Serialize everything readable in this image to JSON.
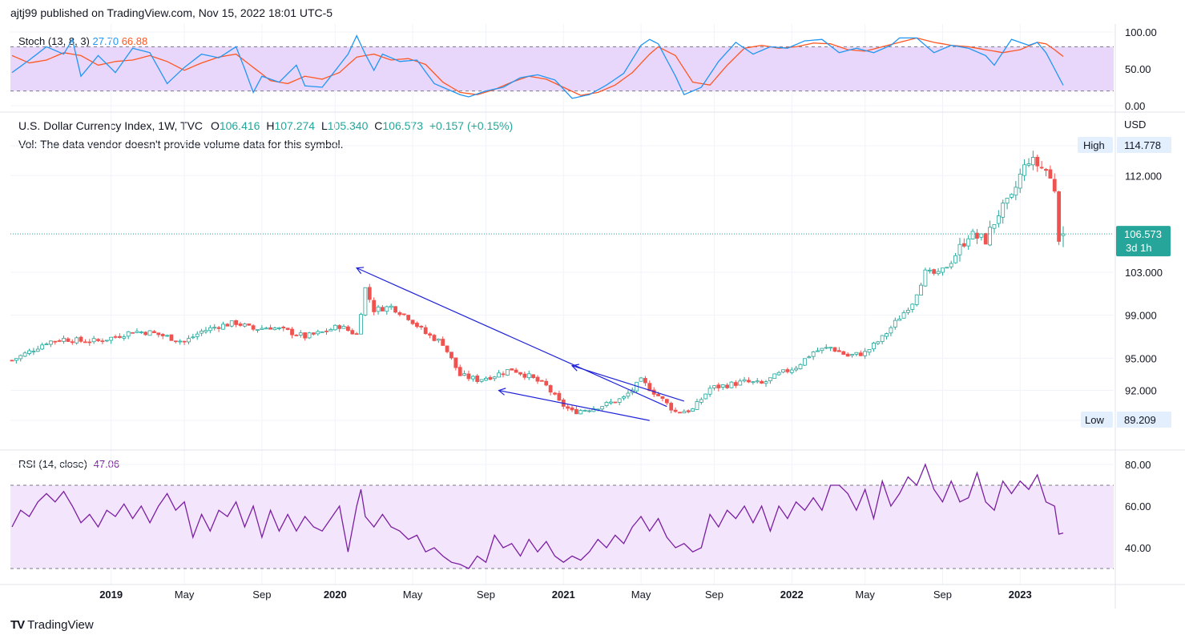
{
  "header": {
    "publisher": "ajtj99 published on TradingView.com, Nov 15, 2022 18:01 UTC-5"
  },
  "footer": {
    "brand": "TradingView"
  },
  "colors": {
    "up": "#26a69a",
    "down": "#ef5350",
    "stoch_k": "#2196f3",
    "stoch_d": "#ff5722",
    "rsi": "#7b1fa2",
    "band_stoch": "#e9d7fb",
    "band_rsi": "#f3e5fc",
    "trendline": "#1e22d8"
  },
  "chart_data": [
    {
      "type": "candlestick",
      "id": "price",
      "title": "U.S. Dollar Currency Index, 1W, TVC",
      "ohlc_label": {
        "o_label": "O",
        "o": "106.416",
        "h_label": "H",
        "h": "107.274",
        "l_label": "L",
        "l": "105.340",
        "c_label": "C",
        "c": "106.573",
        "chg": "+0.157 (+0.15%)"
      },
      "volume_note": "Vol: The data vendor doesn't provide volume data for this symbol.",
      "currency": "USD",
      "y_ticks": [
        89.209,
        92.0,
        95.0,
        99.0,
        103.0,
        112.0,
        114.778
      ],
      "y_tick_labels": [
        "92.000",
        "95.000",
        "99.000",
        "103.000",
        "112.000"
      ],
      "high_tag": {
        "label": "High",
        "value": "114.778"
      },
      "low_tag": {
        "label": "Low",
        "value": "89.209"
      },
      "last_tag": {
        "value": "106.573",
        "countdown": "3d 1h"
      },
      "x_labels": [
        "2019",
        "May",
        "Sep",
        "2020",
        "May",
        "Sep",
        "2021",
        "May",
        "Sep",
        "2022",
        "May",
        "Sep",
        "2023"
      ],
      "anchors": [
        [
          0,
          94.8
        ],
        [
          4,
          95.6
        ],
        [
          8,
          96.5
        ],
        [
          12,
          96.8
        ],
        [
          16,
          96.6
        ],
        [
          20,
          96.6
        ],
        [
          24,
          97.0
        ],
        [
          28,
          97.5
        ],
        [
          32,
          97.4
        ],
        [
          36,
          97.0
        ],
        [
          40,
          96.5
        ],
        [
          44,
          97.5
        ],
        [
          48,
          98.0
        ],
        [
          52,
          98.3
        ],
        [
          56,
          97.7
        ],
        [
          60,
          97.9
        ],
        [
          64,
          97.5
        ],
        [
          68,
          97.0
        ],
        [
          72,
          97.4
        ],
        [
          76,
          98.0
        ],
        [
          80,
          97.2
        ],
        [
          82,
          101.5
        ],
        [
          84,
          99.5
        ],
        [
          88,
          99.8
        ],
        [
          92,
          98.8
        ],
        [
          96,
          97.3
        ],
        [
          100,
          96.4
        ],
        [
          104,
          93.4
        ],
        [
          108,
          93.0
        ],
        [
          112,
          93.4
        ],
        [
          116,
          94.0
        ],
        [
          120,
          93.3
        ],
        [
          124,
          92.4
        ],
        [
          127,
          90.9
        ],
        [
          130,
          90.0
        ],
        [
          134,
          90.3
        ],
        [
          138,
          90.7
        ],
        [
          142,
          91.3
        ],
        [
          146,
          92.9
        ],
        [
          150,
          91.5
        ],
        [
          154,
          90.0
        ],
        [
          158,
          90.2
        ],
        [
          162,
          92.2
        ],
        [
          166,
          92.5
        ],
        [
          170,
          92.8
        ],
        [
          174,
          92.6
        ],
        [
          178,
          93.5
        ],
        [
          182,
          94.2
        ],
        [
          186,
          95.6
        ],
        [
          190,
          96.0
        ],
        [
          194,
          95.2
        ],
        [
          198,
          95.5
        ],
        [
          202,
          96.9
        ],
        [
          206,
          98.8
        ],
        [
          209,
          100.2
        ],
        [
          212,
          103.0
        ],
        [
          215,
          102.8
        ],
        [
          218,
          104.0
        ],
        [
          222,
          106.5
        ],
        [
          226,
          106.0
        ],
        [
          229,
          108.5
        ],
        [
          232,
          109.8
        ],
        [
          234,
          112.0
        ],
        [
          236,
          113.5
        ],
        [
          238,
          113.0
        ],
        [
          240,
          112.5
        ],
        [
          242,
          110.8
        ],
        [
          243,
          106.4
        ],
        [
          244,
          106.57
        ]
      ],
      "trendlines": [
        {
          "from": [
            80,
            103.4
          ],
          "to": [
            152,
            90.5
          ],
          "arrow": "start"
        },
        {
          "from": [
            113,
            92.0
          ],
          "to": [
            148,
            89.2
          ],
          "arrow": "start"
        },
        {
          "from": [
            130,
            94.3
          ],
          "to": [
            156,
            91.0
          ],
          "arrow": "start"
        }
      ]
    },
    {
      "type": "line",
      "id": "stoch",
      "title": "Stoch (13, 8, 3)",
      "k_value": "27.70",
      "d_value": "66.88",
      "ylim": [
        0,
        100
      ],
      "y_tick_labels": [
        "100.00",
        "50.00",
        "0.00"
      ],
      "band": [
        20,
        80
      ],
      "k_anchors": [
        [
          0,
          45
        ],
        [
          4,
          62
        ],
        [
          8,
          80
        ],
        [
          12,
          70
        ],
        [
          14,
          90
        ],
        [
          16,
          40
        ],
        [
          20,
          68
        ],
        [
          24,
          45
        ],
        [
          28,
          78
        ],
        [
          32,
          72
        ],
        [
          36,
          30
        ],
        [
          40,
          52
        ],
        [
          44,
          70
        ],
        [
          48,
          65
        ],
        [
          52,
          80
        ],
        [
          54,
          50
        ],
        [
          56,
          18
        ],
        [
          58,
          40
        ],
        [
          62,
          32
        ],
        [
          66,
          55
        ],
        [
          68,
          27
        ],
        [
          72,
          25
        ],
        [
          74,
          40
        ],
        [
          78,
          70
        ],
        [
          80,
          95
        ],
        [
          82,
          70
        ],
        [
          84,
          48
        ],
        [
          86,
          70
        ],
        [
          90,
          60
        ],
        [
          94,
          62
        ],
        [
          98,
          30
        ],
        [
          102,
          20
        ],
        [
          104,
          15
        ],
        [
          106,
          12
        ],
        [
          110,
          20
        ],
        [
          114,
          25
        ],
        [
          118,
          38
        ],
        [
          122,
          42
        ],
        [
          126,
          35
        ],
        [
          130,
          10
        ],
        [
          134,
          15
        ],
        [
          138,
          28
        ],
        [
          142,
          44
        ],
        [
          146,
          82
        ],
        [
          148,
          90
        ],
        [
          150,
          84
        ],
        [
          154,
          40
        ],
        [
          156,
          15
        ],
        [
          160,
          25
        ],
        [
          164,
          60
        ],
        [
          168,
          86
        ],
        [
          172,
          70
        ],
        [
          176,
          80
        ],
        [
          180,
          78
        ],
        [
          184,
          88
        ],
        [
          188,
          90
        ],
        [
          192,
          72
        ],
        [
          196,
          78
        ],
        [
          200,
          72
        ],
        [
          204,
          82
        ],
        [
          206,
          92
        ],
        [
          210,
          92
        ],
        [
          214,
          72
        ],
        [
          218,
          82
        ],
        [
          222,
          78
        ],
        [
          226,
          68
        ],
        [
          228,
          55
        ],
        [
          232,
          90
        ],
        [
          236,
          82
        ],
        [
          238,
          86
        ],
        [
          240,
          72
        ],
        [
          242,
          50
        ],
        [
          244,
          27.7
        ]
      ],
      "d_anchors": [
        [
          0,
          68
        ],
        [
          4,
          58
        ],
        [
          8,
          62
        ],
        [
          12,
          72
        ],
        [
          16,
          68
        ],
        [
          20,
          55
        ],
        [
          24,
          60
        ],
        [
          28,
          62
        ],
        [
          32,
          68
        ],
        [
          36,
          60
        ],
        [
          40,
          48
        ],
        [
          44,
          58
        ],
        [
          48,
          66
        ],
        [
          52,
          70
        ],
        [
          56,
          52
        ],
        [
          60,
          34
        ],
        [
          64,
          30
        ],
        [
          68,
          40
        ],
        [
          72,
          36
        ],
        [
          76,
          45
        ],
        [
          80,
          66
        ],
        [
          84,
          70
        ],
        [
          88,
          62
        ],
        [
          92,
          64
        ],
        [
          96,
          56
        ],
        [
          100,
          32
        ],
        [
          104,
          18
        ],
        [
          108,
          15
        ],
        [
          112,
          22
        ],
        [
          116,
          32
        ],
        [
          120,
          40
        ],
        [
          124,
          36
        ],
        [
          128,
          25
        ],
        [
          132,
          14
        ],
        [
          136,
          18
        ],
        [
          140,
          28
        ],
        [
          144,
          45
        ],
        [
          148,
          70
        ],
        [
          150,
          80
        ],
        [
          154,
          68
        ],
        [
          158,
          32
        ],
        [
          162,
          28
        ],
        [
          166,
          55
        ],
        [
          170,
          78
        ],
        [
          174,
          82
        ],
        [
          178,
          78
        ],
        [
          182,
          80
        ],
        [
          186,
          85
        ],
        [
          190,
          84
        ],
        [
          194,
          76
        ],
        [
          198,
          74
        ],
        [
          202,
          80
        ],
        [
          206,
          86
        ],
        [
          210,
          92
        ],
        [
          214,
          86
        ],
        [
          218,
          82
        ],
        [
          222,
          80
        ],
        [
          226,
          76
        ],
        [
          230,
          72
        ],
        [
          234,
          76
        ],
        [
          238,
          86
        ],
        [
          240,
          84
        ],
        [
          242,
          76
        ],
        [
          244,
          66.88
        ]
      ]
    },
    {
      "type": "line",
      "id": "rsi",
      "title": "RSI (14, close)",
      "value": "47.06",
      "ylim": [
        25,
        87
      ],
      "y_ticks": [
        40,
        60,
        80
      ],
      "y_tick_labels": [
        "80.00",
        "60.00",
        "40.00"
      ],
      "band": [
        30,
        70
      ],
      "anchors": [
        [
          0,
          50
        ],
        [
          2,
          58
        ],
        [
          4,
          55
        ],
        [
          6,
          62
        ],
        [
          8,
          66
        ],
        [
          10,
          62
        ],
        [
          12,
          67
        ],
        [
          14,
          60
        ],
        [
          16,
          52
        ],
        [
          18,
          56
        ],
        [
          20,
          50
        ],
        [
          22,
          58
        ],
        [
          24,
          55
        ],
        [
          26,
          61
        ],
        [
          28,
          54
        ],
        [
          30,
          60
        ],
        [
          32,
          52
        ],
        [
          34,
          60
        ],
        [
          36,
          66
        ],
        [
          38,
          58
        ],
        [
          40,
          62
        ],
        [
          42,
          45
        ],
        [
          44,
          56
        ],
        [
          46,
          48
        ],
        [
          48,
          58
        ],
        [
          50,
          55
        ],
        [
          52,
          62
        ],
        [
          54,
          50
        ],
        [
          56,
          60
        ],
        [
          58,
          45
        ],
        [
          60,
          58
        ],
        [
          62,
          48
        ],
        [
          64,
          56
        ],
        [
          66,
          48
        ],
        [
          68,
          55
        ],
        [
          70,
          50
        ],
        [
          72,
          48
        ],
        [
          74,
          54
        ],
        [
          76,
          60
        ],
        [
          78,
          38
        ],
        [
          80,
          60
        ],
        [
          81,
          68
        ],
        [
          82,
          55
        ],
        [
          84,
          50
        ],
        [
          86,
          56
        ],
        [
          88,
          50
        ],
        [
          90,
          48
        ],
        [
          92,
          44
        ],
        [
          94,
          46
        ],
        [
          96,
          38
        ],
        [
          98,
          40
        ],
        [
          100,
          36
        ],
        [
          102,
          33
        ],
        [
          104,
          32
        ],
        [
          106,
          30
        ],
        [
          108,
          36
        ],
        [
          110,
          33
        ],
        [
          112,
          46
        ],
        [
          114,
          40
        ],
        [
          116,
          42
        ],
        [
          118,
          36
        ],
        [
          120,
          44
        ],
        [
          122,
          38
        ],
        [
          124,
          43
        ],
        [
          126,
          36
        ],
        [
          128,
          33
        ],
        [
          130,
          36
        ],
        [
          132,
          34
        ],
        [
          134,
          38
        ],
        [
          136,
          44
        ],
        [
          138,
          40
        ],
        [
          140,
          46
        ],
        [
          142,
          42
        ],
        [
          144,
          50
        ],
        [
          146,
          55
        ],
        [
          148,
          48
        ],
        [
          150,
          54
        ],
        [
          152,
          45
        ],
        [
          154,
          40
        ],
        [
          156,
          42
        ],
        [
          158,
          38
        ],
        [
          160,
          40
        ],
        [
          162,
          56
        ],
        [
          164,
          50
        ],
        [
          166,
          58
        ],
        [
          168,
          54
        ],
        [
          170,
          60
        ],
        [
          172,
          52
        ],
        [
          174,
          60
        ],
        [
          176,
          48
        ],
        [
          178,
          60
        ],
        [
          180,
          54
        ],
        [
          182,
          62
        ],
        [
          184,
          58
        ],
        [
          186,
          64
        ],
        [
          188,
          58
        ],
        [
          190,
          70
        ],
        [
          192,
          70
        ],
        [
          194,
          66
        ],
        [
          196,
          58
        ],
        [
          198,
          68
        ],
        [
          200,
          54
        ],
        [
          202,
          72
        ],
        [
          204,
          60
        ],
        [
          206,
          66
        ],
        [
          208,
          74
        ],
        [
          210,
          70
        ],
        [
          212,
          80
        ],
        [
          214,
          68
        ],
        [
          216,
          62
        ],
        [
          218,
          72
        ],
        [
          220,
          62
        ],
        [
          222,
          64
        ],
        [
          224,
          76
        ],
        [
          226,
          62
        ],
        [
          228,
          58
        ],
        [
          230,
          72
        ],
        [
          232,
          66
        ],
        [
          234,
          72
        ],
        [
          236,
          68
        ],
        [
          238,
          75
        ],
        [
          240,
          62
        ],
        [
          242,
          60
        ],
        [
          243,
          46.5
        ],
        [
          244,
          47.06
        ]
      ]
    }
  ]
}
